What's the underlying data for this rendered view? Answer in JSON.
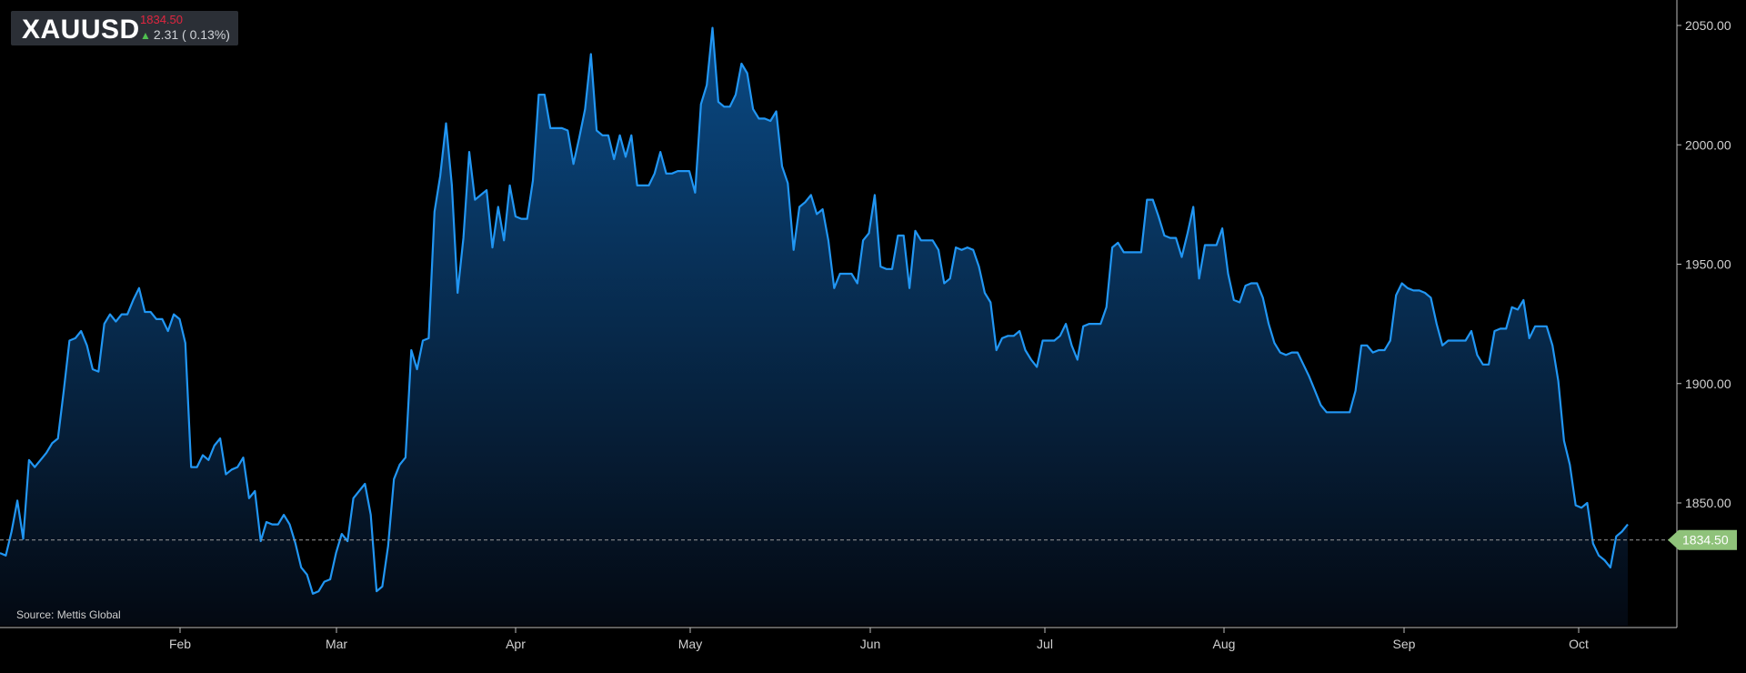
{
  "header": {
    "symbol": "XAUUSD",
    "price": "1834.50",
    "change": "2.31 ( 0.13%)"
  },
  "source_label": "Source: Mettis Global",
  "colors": {
    "line": "#2196f3",
    "price_down": "#e0253f",
    "change_up": "#4fc04f",
    "last_tag": "#8fc27a"
  },
  "chart_data": {
    "type": "area",
    "title": "XAUUSD",
    "x_tick_labels": [
      "Feb",
      "Mar",
      "Apr",
      "May",
      "Jun",
      "Jul",
      "Aug",
      "Sep",
      "Oct"
    ],
    "y_tick_labels": [
      "2050.00",
      "2000.00",
      "1950.00",
      "1900.00",
      "1850.00"
    ],
    "ylim": [
      1808,
      2062
    ],
    "y_ticks": [
      2050,
      2000,
      1950,
      1900,
      1850
    ],
    "last_price": 1834.5,
    "last_price_label": "1834.50",
    "y_axis_side": "right",
    "grid": false,
    "series": [
      {
        "values": [
          1829,
          1828,
          1838,
          1851,
          1835,
          1868,
          1865,
          1868,
          1871,
          1875,
          1877,
          1897,
          1918,
          1919,
          1922,
          1916,
          1906,
          1905,
          1925,
          1929,
          1926,
          1929,
          1929,
          1935,
          1940,
          1930,
          1930,
          1927,
          1927,
          1922,
          1929,
          1927,
          1917,
          1865,
          1865,
          1870,
          1868,
          1874,
          1877,
          1862,
          1864,
          1865,
          1869,
          1852,
          1855,
          1834,
          1842,
          1841,
          1841,
          1845,
          1841,
          1833,
          1823,
          1820,
          1812,
          1813,
          1817,
          1818,
          1829,
          1837,
          1834,
          1852,
          1855,
          1858,
          1845,
          1813,
          1815,
          1832,
          1860,
          1866,
          1869,
          1914,
          1906,
          1918,
          1919,
          1972,
          1987,
          2009,
          1983,
          1938,
          1961,
          1997,
          1977,
          1979,
          1981,
          1957,
          1974,
          1960,
          1983,
          1970,
          1969,
          1969,
          1985,
          2021,
          2021,
          2007,
          2007,
          2007,
          2006,
          1992,
          2003,
          2015,
          2038,
          2006,
          2004,
          2004,
          1994,
          2004,
          1995,
          2004,
          1983,
          1983,
          1983,
          1988,
          1997,
          1988,
          1988,
          1989,
          1989,
          1989,
          1980,
          2017,
          2025,
          2049,
          2018,
          2016,
          2016,
          2021,
          2034,
          2030,
          2015,
          2011,
          2011,
          2010,
          2014,
          1991,
          1984,
          1956,
          1974,
          1976,
          1979,
          1971,
          1973,
          1960,
          1940,
          1946,
          1946,
          1946,
          1942,
          1960,
          1963,
          1979,
          1949,
          1948,
          1948,
          1962,
          1962,
          1940,
          1964,
          1960,
          1960,
          1960,
          1956,
          1942,
          1944,
          1957,
          1956,
          1957,
          1956,
          1949,
          1938,
          1934,
          1914,
          1919,
          1920,
          1920,
          1922,
          1914,
          1910,
          1907,
          1918,
          1918,
          1918,
          1920,
          1925,
          1916,
          1910,
          1924,
          1925,
          1925,
          1925,
          1932,
          1957,
          1959,
          1955,
          1955,
          1955,
          1955,
          1977,
          1977,
          1970,
          1962,
          1961,
          1961,
          1953,
          1963,
          1974,
          1944,
          1958,
          1958,
          1958,
          1965,
          1946,
          1935,
          1934,
          1941,
          1942,
          1942,
          1936,
          1925,
          1917,
          1913,
          1912,
          1913,
          1913,
          1908,
          1903,
          1897,
          1891,
          1888,
          1888,
          1888,
          1888,
          1888,
          1897,
          1916,
          1916,
          1913,
          1914,
          1914,
          1918,
          1937,
          1942,
          1940,
          1939,
          1939,
          1938,
          1936,
          1925,
          1916,
          1918,
          1918,
          1918,
          1918,
          1922,
          1912,
          1908,
          1908,
          1922,
          1923,
          1923,
          1932,
          1931,
          1935,
          1919,
          1924,
          1924,
          1924,
          1916,
          1901,
          1876,
          1866,
          1849,
          1848,
          1850,
          1833,
          1828,
          1826,
          1823,
          1836,
          1838,
          1841
        ]
      }
    ]
  }
}
